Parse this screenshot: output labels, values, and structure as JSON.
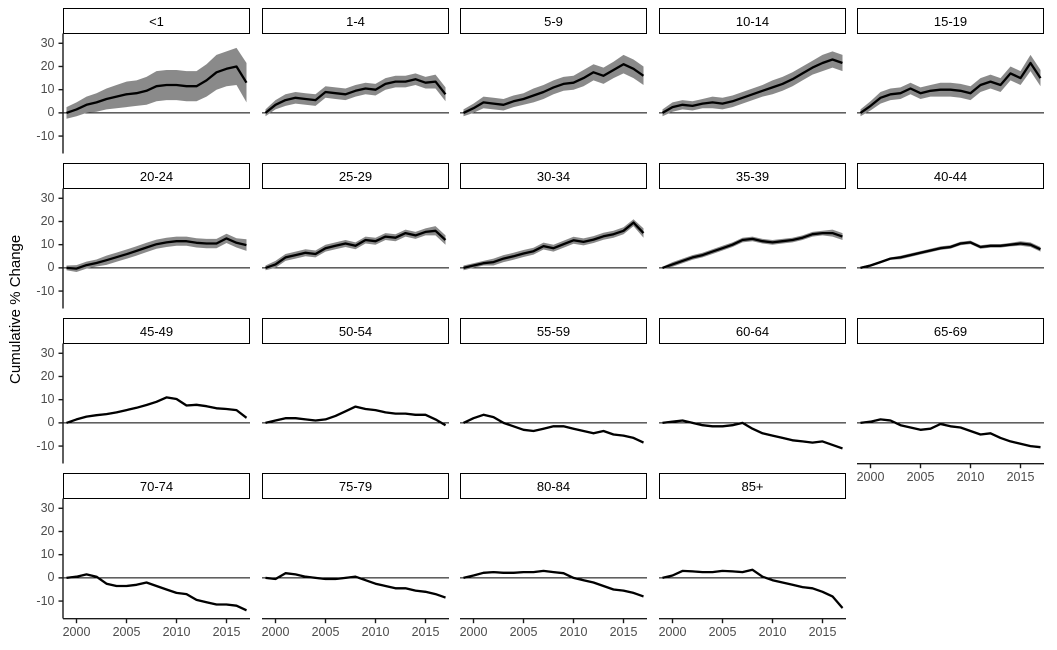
{
  "chart_data": {
    "type": "line",
    "title": "",
    "ylabel": "Cumulative % Change",
    "xlabel": "",
    "x": [
      1999,
      2000,
      2001,
      2002,
      2003,
      2004,
      2005,
      2006,
      2007,
      2008,
      2009,
      2010,
      2011,
      2012,
      2013,
      2014,
      2015,
      2016,
      2017
    ],
    "x_ticks": [
      2000,
      2005,
      2010,
      2015
    ],
    "y_ticks": [
      30,
      20,
      10,
      0,
      -10
    ],
    "ylim": [
      -17.3,
      34
    ],
    "grid": false,
    "legend": "none",
    "facet_columns": 5,
    "zero_reference_line": 0,
    "facets": [
      {
        "label": "<1",
        "values": [
          0,
          1.5,
          3.5,
          4.5,
          6,
          7,
          8,
          8.5,
          9.5,
          11.5,
          12,
          12,
          11.5,
          11.5,
          14,
          17.5,
          19,
          20,
          13
        ],
        "band": [
          2.5,
          3,
          3.5,
          4,
          4.5,
          5,
          5.5,
          5.5,
          6,
          6.5,
          6.5,
          6.5,
          6.5,
          6.5,
          7,
          7.5,
          7.5,
          8,
          8.5
        ]
      },
      {
        "label": "1-4",
        "values": [
          0,
          3.5,
          5.5,
          6.5,
          6,
          5.5,
          9,
          8.5,
          8,
          9.5,
          10.5,
          10,
          12.5,
          13.5,
          13.5,
          14.5,
          13,
          13.5,
          8
        ],
        "band": [
          1.5,
          2,
          2.5,
          2.5,
          2.5,
          2.5,
          2.5,
          2.5,
          2.5,
          2.5,
          2.5,
          2.5,
          2.5,
          2.5,
          2.5,
          2.5,
          2.5,
          3,
          3
        ]
      },
      {
        "label": "5-9",
        "values": [
          0,
          2,
          4.5,
          4,
          3.5,
          5,
          6,
          7.5,
          9,
          11,
          12.5,
          13,
          15,
          17.5,
          16,
          18.5,
          21,
          19,
          16
        ],
        "band": [
          1.5,
          2,
          2.5,
          2.5,
          2.5,
          2.5,
          2.5,
          3,
          3,
          3,
          3,
          3,
          3.5,
          3.5,
          3.5,
          3.5,
          4,
          4,
          4
        ]
      },
      {
        "label": "10-14",
        "values": [
          0,
          2.5,
          3.5,
          3,
          4,
          4.5,
          4,
          5,
          6.5,
          8,
          9.5,
          11,
          12.5,
          14.5,
          17,
          19.5,
          21.5,
          23,
          21.5
        ],
        "band": [
          1.5,
          2,
          2,
          2,
          2,
          2.5,
          2.5,
          2.5,
          2.5,
          2.5,
          2.5,
          3,
          3,
          3,
          3,
          3,
          3.5,
          3.5,
          3.5
        ]
      },
      {
        "label": "15-19",
        "values": [
          0,
          3,
          6.5,
          8,
          8.5,
          10.5,
          8.5,
          9.5,
          10,
          10,
          9.5,
          8.5,
          12,
          13.5,
          12,
          17,
          15,
          21.5,
          15
        ],
        "band": [
          1.5,
          2,
          2.5,
          2.5,
          2.5,
          2.5,
          2.5,
          2.5,
          3,
          3,
          3,
          3,
          3,
          3,
          3,
          3,
          3,
          3.5,
          3.5
        ]
      },
      {
        "label": "20-24",
        "values": [
          0,
          -0.3,
          1.2,
          2.1,
          3.3,
          4.6,
          5.9,
          7.3,
          8.8,
          10.2,
          11,
          11.5,
          11.5,
          10.8,
          10.5,
          10.5,
          12.7,
          10.8,
          9.8
        ],
        "band": [
          1,
          1.5,
          1.5,
          1.5,
          2,
          2,
          2,
          2,
          2,
          2,
          2,
          2,
          2,
          2,
          2,
          2,
          2,
          2,
          2.5
        ]
      },
      {
        "label": "25-29",
        "values": [
          0,
          1.5,
          4.5,
          5.5,
          6.5,
          6,
          8.5,
          9.5,
          10.5,
          9.5,
          12,
          11.5,
          13.5,
          13,
          15,
          14,
          15.5,
          16,
          12
        ],
        "band": [
          1,
          1.5,
          1.5,
          1.5,
          1.5,
          1.5,
          1.5,
          1.5,
          1.5,
          1.5,
          1.5,
          1.5,
          1.5,
          1.5,
          1.5,
          1.5,
          1.5,
          2,
          2
        ]
      },
      {
        "label": "30-34",
        "values": [
          0,
          1,
          2,
          2.5,
          4,
          5,
          6.2,
          7.2,
          9.4,
          8.5,
          10.2,
          11.9,
          11.2,
          12.2,
          13.6,
          14.5,
          16,
          19.5,
          15
        ],
        "band": [
          1,
          1,
          1,
          1.5,
          1.5,
          1.5,
          1.5,
          1.5,
          1.5,
          1.5,
          1.5,
          1.5,
          1.5,
          1.5,
          1.5,
          1.5,
          1.5,
          1.5,
          2
        ]
      },
      {
        "label": "35-39",
        "values": [
          0,
          1.5,
          3,
          4.5,
          5.5,
          7,
          8.5,
          10,
          12,
          12.5,
          11.5,
          11,
          11.5,
          12,
          13,
          14.5,
          15,
          15,
          13.5
        ],
        "band": [
          0.5,
          1,
          1,
          1,
          1,
          1,
          1,
          1,
          1,
          1,
          1,
          1,
          1,
          1,
          1,
          1,
          1,
          1.5,
          1.5
        ]
      },
      {
        "label": "40-44",
        "values": [
          0,
          1,
          2.5,
          4,
          4.5,
          5.5,
          6.5,
          7.5,
          8.5,
          9,
          10.5,
          11,
          9,
          9.5,
          9.5,
          10,
          10.5,
          10,
          8
        ],
        "band": [
          0.5,
          0.5,
          0.5,
          0.5,
          0.75,
          0.75,
          0.75,
          0.75,
          0.75,
          0.75,
          0.75,
          0.75,
          0.75,
          0.75,
          0.75,
          0.75,
          1,
          1,
          1
        ]
      },
      {
        "label": "45-49",
        "values": [
          0,
          1.5,
          2.7,
          3.3,
          3.8,
          4.5,
          5.5,
          6.5,
          7.7,
          9.1,
          11,
          10.3,
          7.5,
          7.8,
          7.2,
          6.3,
          6,
          5.5,
          2.2
        ],
        "band": 0.4
      },
      {
        "label": "50-54",
        "values": [
          0,
          1,
          2,
          2,
          1.5,
          1,
          1.5,
          3,
          5,
          7,
          6,
          5.5,
          4.5,
          4,
          4,
          3.5,
          3.5,
          1.5,
          -1
        ],
        "band": 0.4
      },
      {
        "label": "55-59",
        "values": [
          0,
          2,
          3.5,
          2.5,
          0,
          -1.5,
          -3,
          -3.5,
          -2.5,
          -1.5,
          -1.5,
          -2.5,
          -3.5,
          -4.5,
          -3.5,
          -5,
          -5.5,
          -6.5,
          -8.5
        ],
        "band": 0.4
      },
      {
        "label": "60-64",
        "values": [
          0,
          0.5,
          1,
          0,
          -1,
          -1.5,
          -1.5,
          -1,
          0,
          -2.5,
          -4.5,
          -5.5,
          -6.5,
          -7.5,
          -8,
          -8.5,
          -8,
          -9.5,
          -11
        ],
        "band": 0.4
      },
      {
        "label": "65-69",
        "values": [
          0,
          0.5,
          1.5,
          1,
          -1,
          -2,
          -3,
          -2.5,
          -0.5,
          -1.5,
          -2,
          -3.5,
          -5,
          -4.5,
          -6.5,
          -8,
          -9,
          -10,
          -10.5
        ],
        "band": 0.4
      },
      {
        "label": "70-74",
        "values": [
          0,
          0.5,
          1.5,
          0.5,
          -2.5,
          -3.5,
          -3.5,
          -3,
          -2,
          -3.5,
          -5,
          -6.5,
          -7,
          -9.5,
          -10.5,
          -11.5,
          -11.5,
          -12,
          -14
        ],
        "band": 0.4
      },
      {
        "label": "75-79",
        "values": [
          0,
          -0.5,
          2,
          1.5,
          0.5,
          0,
          -0.5,
          -0.5,
          0,
          0.5,
          -1,
          -2.5,
          -3.5,
          -4.5,
          -4.5,
          -5.5,
          -6,
          -7,
          -8.5
        ],
        "band": 0.4
      },
      {
        "label": "80-84",
        "values": [
          0,
          1,
          2.2,
          2.5,
          2.2,
          2.2,
          2.5,
          2.5,
          3,
          2.5,
          2,
          0,
          -1,
          -2,
          -3.5,
          -5,
          -5.5,
          -6.5,
          -8
        ],
        "band": 0.4
      },
      {
        "label": "85+",
        "values": [
          0,
          1,
          3,
          2.8,
          2.5,
          2.5,
          3,
          2.8,
          2.5,
          3.5,
          0.5,
          -1,
          -2,
          -3,
          -4,
          -4.5,
          -6,
          -8,
          -13
        ],
        "band": 0.4
      }
    ]
  },
  "style": {
    "line_color": "#000000",
    "ribbon_color": "#8a8a8a",
    "zero_line_color": "#000000",
    "axis_line_color": "#1a1a1a",
    "axis_text_color": "#4d4d4d",
    "strip_border_color": "#000000",
    "strip_fill": "#ffffff",
    "background": "#ffffff"
  }
}
